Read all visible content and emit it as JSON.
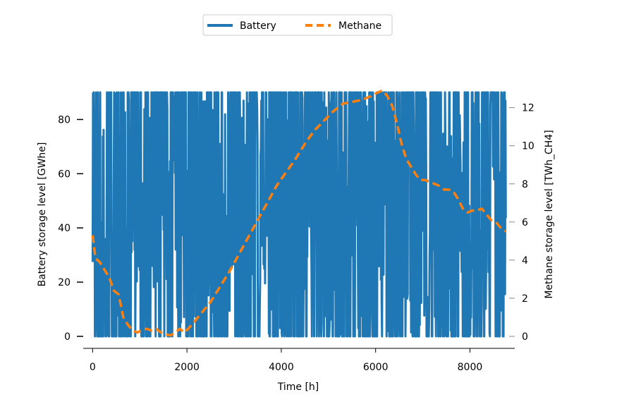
{
  "chart_data": {
    "type": "line",
    "xlabel": "Time [h]",
    "ylabel_left": "Battery storage level [GWhe]",
    "ylabel_right": "Methane storage level [TWh_CH4]",
    "xlim": [
      -200,
      8950
    ],
    "ylim_left": [
      0,
      90
    ],
    "ylim_right": [
      0,
      12.8
    ],
    "x_ticks": [
      0,
      2000,
      4000,
      6000,
      8000
    ],
    "x_tick_labels": [
      "0",
      "2000",
      "4000",
      "6000",
      "8000"
    ],
    "y_left_ticks": [
      0,
      20,
      40,
      60,
      80
    ],
    "y_left_tick_labels": [
      "0",
      "20",
      "40",
      "60",
      "80"
    ],
    "y_right_ticks": [
      0,
      2,
      4,
      6,
      8,
      10,
      12
    ],
    "y_right_tick_labels": [
      "0",
      "2",
      "4",
      "6",
      "8",
      "10",
      "12"
    ],
    "grid": false,
    "legend": {
      "placement": "top-center",
      "entries": [
        "Battery",
        "Methane"
      ]
    },
    "series": [
      {
        "name": "Battery",
        "axis": "left",
        "style": "solid",
        "color": "#1f77b4",
        "x_range": [
          0,
          8760
        ],
        "min": 0,
        "max": 90,
        "note_values_oscillate": true
      },
      {
        "name": "Methane",
        "axis": "right",
        "style": "dashed",
        "color": "#ff7f0e",
        "x": [
          0,
          60,
          150,
          250,
          350,
          450,
          550,
          650,
          750,
          850,
          950,
          1050,
          1150,
          1250,
          1350,
          1450,
          1550,
          1650,
          1750,
          1850,
          1950,
          2100,
          2300,
          2500,
          2700,
          2900,
          3100,
          3300,
          3500,
          3700,
          3900,
          4100,
          4300,
          4500,
          4700,
          4900,
          5100,
          5300,
          5500,
          5700,
          5900,
          6050,
          6150,
          6250,
          6350,
          6450,
          6550,
          6650,
          6750,
          6850,
          6950,
          7050,
          7150,
          7250,
          7350,
          7450,
          7550,
          7650,
          7750,
          7850,
          7950,
          8050,
          8150,
          8250,
          8350,
          8450,
          8550,
          8650,
          8760
        ],
        "values": [
          5.3,
          4.1,
          3.9,
          3.5,
          3.1,
          2.4,
          2.2,
          1.0,
          0.6,
          0.3,
          0.2,
          0.35,
          0.4,
          0.3,
          0.4,
          0.2,
          0.1,
          0.05,
          0.2,
          0.4,
          0.2,
          0.6,
          1.2,
          1.8,
          2.6,
          3.4,
          4.3,
          5.2,
          6.1,
          7.0,
          7.9,
          8.6,
          9.3,
          10.1,
          10.8,
          11.3,
          11.8,
          12.2,
          12.3,
          12.4,
          12.6,
          12.8,
          12.9,
          12.6,
          12.1,
          11.2,
          10.1,
          9.3,
          8.9,
          8.5,
          8.2,
          8.2,
          8.1,
          8.0,
          7.9,
          7.7,
          7.7,
          7.6,
          7.2,
          6.7,
          6.5,
          6.6,
          6.6,
          6.7,
          6.4,
          6.1,
          6.0,
          5.7,
          5.5
        ]
      }
    ]
  }
}
